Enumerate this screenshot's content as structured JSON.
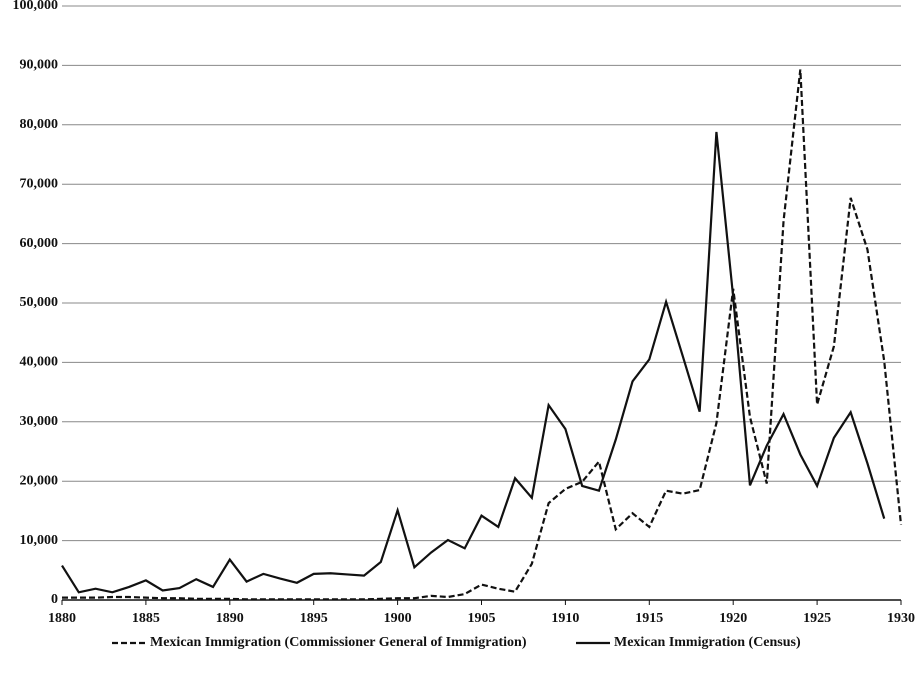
{
  "chart_data": {
    "type": "line",
    "x": [
      1880,
      1881,
      1882,
      1883,
      1884,
      1885,
      1886,
      1887,
      1888,
      1889,
      1890,
      1891,
      1892,
      1893,
      1894,
      1895,
      1896,
      1897,
      1898,
      1899,
      1900,
      1901,
      1902,
      1903,
      1904,
      1905,
      1906,
      1907,
      1908,
      1909,
      1910,
      1911,
      1912,
      1913,
      1914,
      1915,
      1916,
      1917,
      1918,
      1919,
      1920,
      1921,
      1922,
      1923,
      1924,
      1925,
      1926,
      1927,
      1928,
      1929,
      1930
    ],
    "series": [
      {
        "name": "Mexican Immigration (Commissioner General of Immigration)",
        "color": "#111111",
        "line_style": "dashed",
        "values": [
          400,
          400,
          400,
          500,
          500,
          400,
          300,
          300,
          200,
          200,
          200,
          100,
          100,
          100,
          100,
          100,
          100,
          100,
          100,
          200,
          300,
          300,
          700,
          500,
          1000,
          2600,
          1900,
          1400,
          6100,
          16300,
          18700,
          19900,
          23300,
          11900,
          14600,
          12300,
          18400,
          17900,
          18500,
          29800,
          52400,
          30800,
          19600,
          63800,
          89300,
          32900,
          42700,
          67700,
          59000,
          40200,
          12700
        ]
      },
      {
        "name": "Mexican Immigration (Census)",
        "color": "#111111",
        "line_style": "solid",
        "values": [
          5800,
          1300,
          1900,
          1300,
          2200,
          3300,
          1600,
          2000,
          3500,
          2200,
          6800,
          3100,
          4400,
          3600,
          2900,
          4400,
          4500,
          4300,
          4100,
          6400,
          15100,
          5500,
          8000,
          10100,
          8700,
          14200,
          12300,
          20500,
          17200,
          32800,
          28800,
          19200,
          18400,
          27000,
          36800,
          40500,
          50200,
          41000,
          31700,
          78800,
          51000,
          19300,
          26000,
          31300,
          24500,
          19200,
          27300,
          31600,
          23000,
          13700,
          null
        ]
      }
    ],
    "xlim": [
      1880,
      1930
    ],
    "xticks": [
      1880,
      1885,
      1890,
      1895,
      1900,
      1905,
      1910,
      1915,
      1920,
      1925,
      1930
    ],
    "ylim": [
      0,
      100000
    ],
    "yticks": [
      0,
      {
        "value": 10000,
        "label": "10,000"
      },
      {
        "value": 20000,
        "label": "20,000"
      },
      {
        "value": 30000,
        "label": "30,000"
      },
      {
        "value": 40000,
        "label": "40,000"
      },
      {
        "value": 50000,
        "label": "50,000"
      },
      {
        "value": 60000,
        "label": "60,000"
      },
      {
        "value": 70000,
        "label": "70,000"
      },
      {
        "value": 80000,
        "label": "80,000"
      },
      {
        "value": 90000,
        "label": "90,000"
      },
      {
        "value": 100000,
        "label": "100,000"
      }
    ],
    "grid": true,
    "legend": "bottom"
  }
}
